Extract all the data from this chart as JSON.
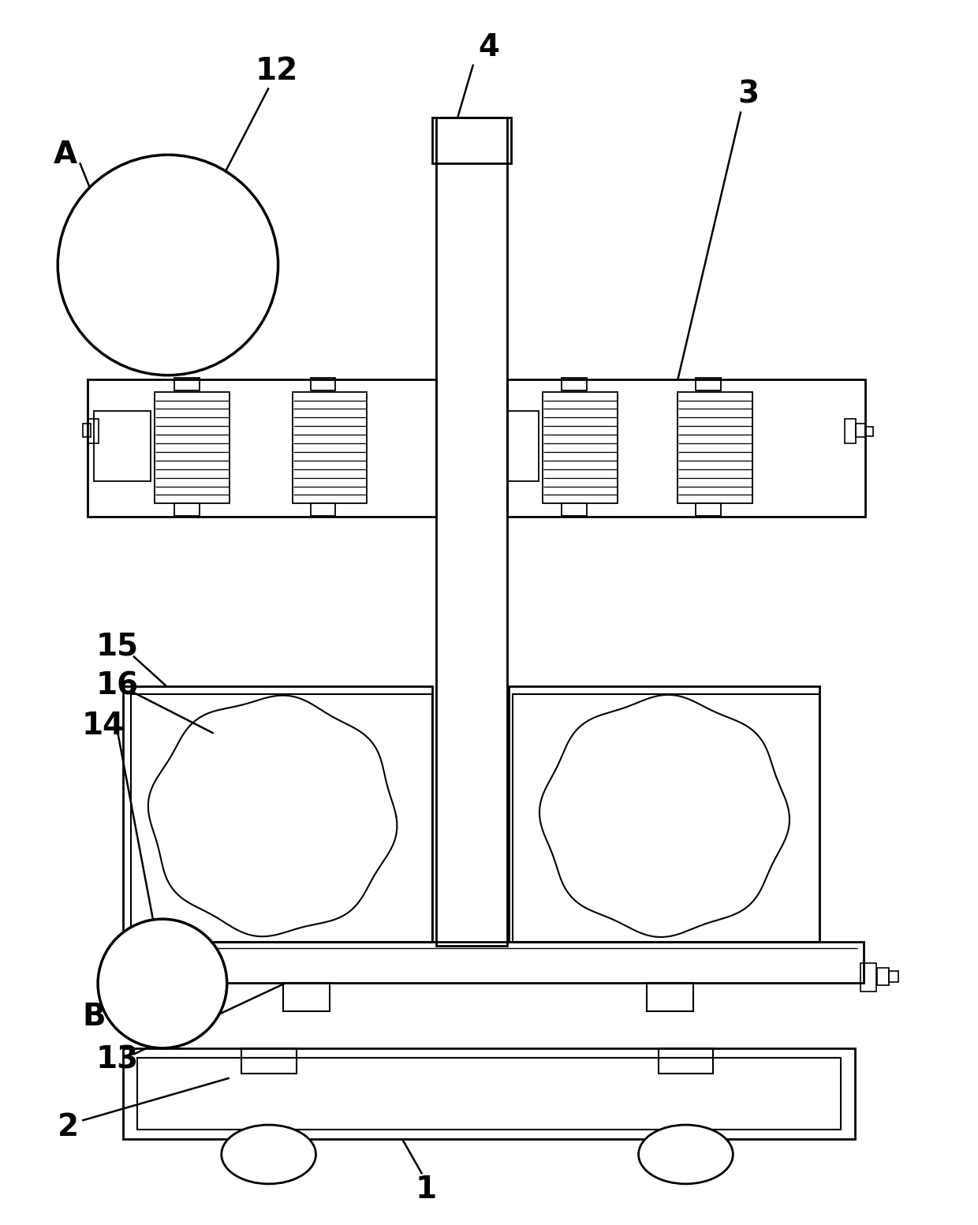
{
  "background": "#ffffff",
  "line_color": "#000000",
  "lw_main": 2.0,
  "lw_med": 1.5,
  "lw_thin": 1.0,
  "fig_width": 12.4,
  "fig_height": 15.53
}
